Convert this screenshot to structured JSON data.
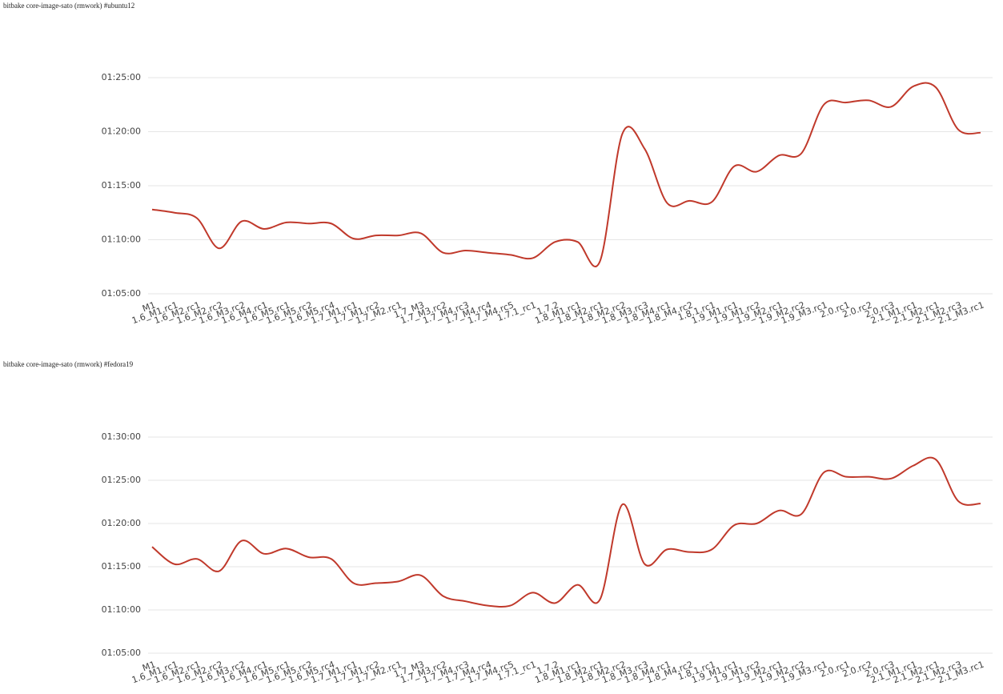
{
  "chart_data": [
    {
      "type": "line",
      "title": "bitbake core-image-sato (rmwork) #ubuntu12",
      "categories": [
        "M1",
        "1.6_M1.rc1",
        "1.6_M2.rc1",
        "1.6_M2.rc2",
        "1.6_M3.rc2",
        "1.6_M4.rc1",
        "1.6_M5.rc1",
        "1.6_M5.rc2",
        "1.6_M5.rc4",
        "1.7_M1.rc1",
        "1.7_M1.rc2",
        "1.7_M2.rc1",
        "1.7_M3",
        "1.7_M3.rc2",
        "1.7_M4.rc3",
        "1.7_M4.rc4",
        "1.7_M4.rc5",
        "1.7.1_rc1",
        "1.7.2",
        "1.8_M1.rc1",
        "1.8_M2.rc1",
        "1.8_M2.rc2",
        "1.8_M3.rc3",
        "1.8_M4.rc1",
        "1.8_M4.rc2",
        "1.8.1.rc1",
        "1.9_M1.rc1",
        "1.9_M1.rc2",
        "1.9_M2.rc1",
        "1.9_M2.rc2",
        "1.9_M3.rc1",
        "2.0.rc1",
        "2.0.rc2",
        "2.0.rc3",
        "2.1_M1.rc1",
        "2.1_M2.rc1",
        "2.1_M2.rc3",
        "2.1_M3.rc1"
      ],
      "series": [
        {
          "color": "#c0392b",
          "values": [
            4368,
            4350,
            4320,
            4152,
            4302,
            4260,
            4296,
            4290,
            4290,
            4206,
            4224,
            4224,
            4236,
            4128,
            4140,
            4128,
            4116,
            4098,
            4188,
            4188,
            4080,
            4788,
            4704,
            4404,
            4416,
            4410,
            4608,
            4578,
            4668,
            4680,
            4950,
            4962,
            4974,
            4938,
            5052,
            5046,
            4812,
            4794
          ]
        }
      ],
      "ylim": [
        3900,
        5100
      ],
      "yticks": [
        {
          "value": 3900,
          "label": "01:05:00"
        },
        {
          "value": 4200,
          "label": "01:10:00"
        },
        {
          "value": 4500,
          "label": "01:15:00"
        },
        {
          "value": 4800,
          "label": "01:20:00"
        },
        {
          "value": 5100,
          "label": "01:25:00"
        }
      ],
      "grid": true
    },
    {
      "type": "line",
      "title": "bitbake core-image-sato (rmwork) #fedora19",
      "categories": [
        "M1",
        "1.6_M1.rc1",
        "1.6_M2.rc1",
        "1.6_M2.rc2",
        "1.6_M3.rc2",
        "1.6_M4.rc1",
        "1.6_M5.rc1",
        "1.6_M5.rc2",
        "1.6_M5.rc4",
        "1.7_M1.rc1",
        "1.7_M1.rc2",
        "1.7_M2.rc1",
        "1.7_M3",
        "1.7_M3.rc2",
        "1.7_M4.rc3",
        "1.7_M4.rc4",
        "1.7_M4.rc5",
        "1.7.1_rc1",
        "1.7.2",
        "1.8_M1.rc1",
        "1.8_M2.rc1",
        "1.8_M2.rc2",
        "1.8_M3.rc3",
        "1.8_M4.rc1",
        "1.8_M4.rc2",
        "1.8.1.rc1",
        "1.9_M1.rc1",
        "1.9_M1.rc2",
        "1.9_M2.rc1",
        "1.9_M2.rc2",
        "1.9_M3.rc1",
        "2.0.rc1",
        "2.0.rc2",
        "2.0.rc3",
        "2.1_M1.rc1",
        "2.1_M2.rc1",
        "2.1_M2.rc3",
        "2.1_M3.rc1"
      ],
      "series": [
        {
          "color": "#c0392b",
          "values": [
            4638,
            4518,
            4554,
            4470,
            4680,
            4590,
            4626,
            4566,
            4554,
            4386,
            4386,
            4398,
            4440,
            4296,
            4260,
            4230,
            4230,
            4320,
            4248,
            4374,
            4272,
            4932,
            4518,
            4620,
            4602,
            4620,
            4788,
            4800,
            4890,
            4866,
            5154,
            5124,
            5124,
            5112,
            5202,
            5244,
            4956,
            4938
          ]
        }
      ],
      "ylim": [
        3900,
        5400
      ],
      "yticks": [
        {
          "value": 3900,
          "label": "01:05:00"
        },
        {
          "value": 4200,
          "label": "01:10:00"
        },
        {
          "value": 4500,
          "label": "01:15:00"
        },
        {
          "value": 4800,
          "label": "01:20:00"
        },
        {
          "value": 5100,
          "label": "01:25:00"
        },
        {
          "value": 5400,
          "label": "01:30:00"
        }
      ],
      "grid": true
    }
  ]
}
